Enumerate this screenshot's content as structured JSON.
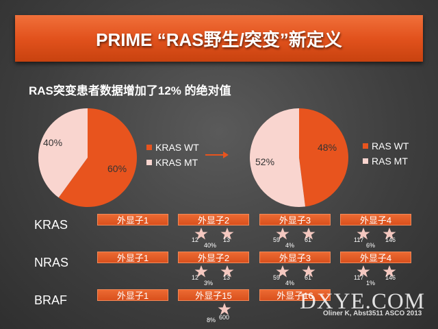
{
  "title": "PRIME “RAS野生/突变”新定义",
  "subtitle": "RAS突变患者数据增加了12% 的绝对值",
  "colors": {
    "orange": "#e8541e",
    "pink": "#f9d5cf",
    "background": "#3e3e3e"
  },
  "chart_data": [
    {
      "type": "pie",
      "series": [
        {
          "name": "KRAS WT",
          "value": 60
        },
        {
          "name": "KRAS MT",
          "value": 40
        }
      ],
      "labels": [
        "60%",
        "40%"
      ],
      "legend": [
        "KRAS WT",
        "KRAS MT"
      ]
    },
    {
      "type": "pie",
      "series": [
        {
          "name": "RAS WT",
          "value": 48
        },
        {
          "name": "RAS MT",
          "value": 52
        }
      ],
      "labels": [
        "48%",
        "52%"
      ],
      "legend": [
        "RAS WT",
        "RAS MT"
      ]
    }
  ],
  "genes": [
    {
      "name": "KRAS",
      "exons": [
        {
          "label": "外显子1",
          "codons": [],
          "pct": ""
        },
        {
          "label": "外显子2",
          "codons": [
            "12",
            "13"
          ],
          "pct": "40%"
        },
        {
          "label": "外显子3",
          "codons": [
            "59",
            "61"
          ],
          "pct": "4%"
        },
        {
          "label": "外显子4",
          "codons": [
            "117",
            "146"
          ],
          "pct": "6%"
        }
      ]
    },
    {
      "name": "NRAS",
      "exons": [
        {
          "label": "外显子1",
          "codons": [],
          "pct": ""
        },
        {
          "label": "外显子2",
          "codons": [
            "12",
            "13"
          ],
          "pct": "3%"
        },
        {
          "label": "外显子3",
          "codons": [
            "59",
            "61"
          ],
          "pct": "4%"
        },
        {
          "label": "外显子4",
          "codons": [
            "117",
            "146"
          ],
          "pct": "1%"
        }
      ]
    },
    {
      "name": "BRAF",
      "exons": [
        {
          "label": "外显子1",
          "codons": [],
          "pct": ""
        },
        {
          "label": "外显子15",
          "codons": [
            "600"
          ],
          "pct": "8%"
        },
        {
          "label": "外显子16",
          "codons": [],
          "pct": ""
        }
      ]
    }
  ],
  "watermark": "DXYE.COM",
  "citation": "Oliner K, Abst3511 ASCO 2013"
}
